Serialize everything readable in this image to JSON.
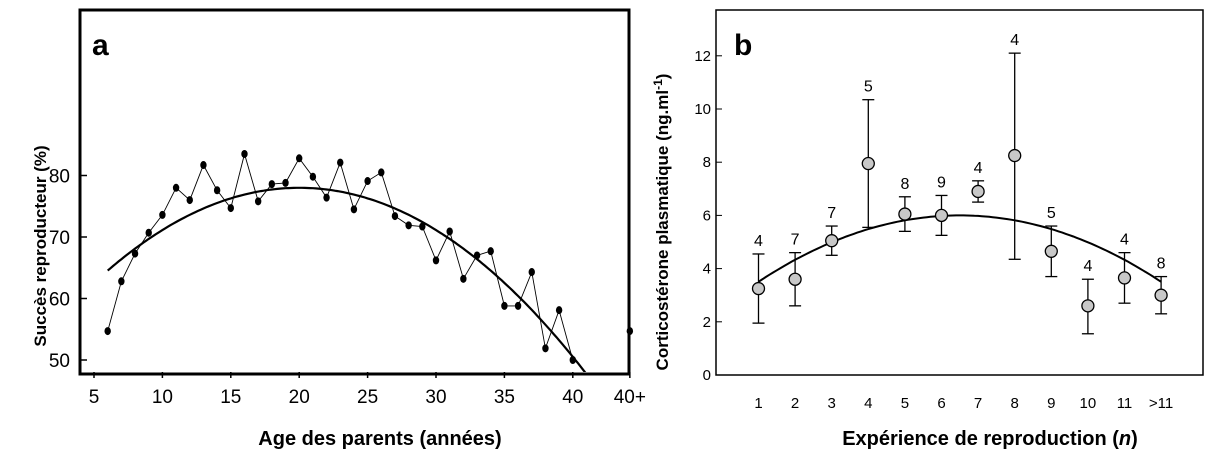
{
  "chart_data": [
    {
      "panel": "a",
      "type": "line",
      "ylabel": "Succès reproducteur (%)",
      "xlabel": "Age des parents (années)",
      "xticks": [
        "5",
        "10",
        "15",
        "20",
        "25",
        "30",
        "35",
        "40",
        "40+"
      ],
      "yticks": [
        "50",
        "60",
        "70",
        "80"
      ],
      "xlim": [
        4.5,
        44.8
      ],
      "ylim": [
        47.5,
        100
      ],
      "series": [
        {
          "values": [
            [
              6,
              54.7
            ],
            [
              7,
              62.8
            ],
            [
              8,
              67.3
            ],
            [
              9,
              70.7
            ],
            [
              10,
              73.6
            ],
            [
              11,
              78.0
            ],
            [
              12,
              76.0
            ],
            [
              13,
              81.7
            ],
            [
              14,
              77.6
            ],
            [
              15,
              74.7
            ],
            [
              16,
              83.5
            ],
            [
              17,
              75.8
            ],
            [
              18,
              78.6
            ],
            [
              19,
              78.8
            ],
            [
              20,
              82.8
            ],
            [
              21,
              79.8
            ],
            [
              22,
              76.4
            ],
            [
              23,
              82.1
            ],
            [
              24,
              74.5
            ],
            [
              25,
              79.1
            ],
            [
              26,
              80.5
            ],
            [
              27,
              73.4
            ],
            [
              28,
              71.9
            ],
            [
              29,
              71.7
            ],
            [
              30,
              66.2
            ],
            [
              31,
              70.9
            ],
            [
              32,
              63.2
            ],
            [
              33,
              67.0
            ],
            [
              34,
              67.7
            ],
            [
              35,
              58.8
            ],
            [
              36,
              58.8
            ],
            [
              37,
              64.3
            ],
            [
              38,
              51.9
            ],
            [
              39,
              58.1
            ],
            [
              40,
              50.0
            ]
          ]
        }
      ],
      "extra_point": {
        "x_label": "40+",
        "y": 54.7
      },
      "fit_curve": {
        "type": "quadratic",
        "vertex_x": 20,
        "vertex_y": 78,
        "a": -0.0687,
        "x_range": [
          6,
          42.8
        ]
      }
    },
    {
      "panel": "b",
      "type": "scatter",
      "ylabel": "Corticostérone plasmatique (ng.ml⁻¹)",
      "xlabel": "Expérience de reproduction (n)",
      "categories": [
        "1",
        "2",
        "3",
        "4",
        "5",
        "6",
        "7",
        "8",
        "9",
        "10",
        "11",
        ">11"
      ],
      "yticks": [
        "0",
        "2",
        "4",
        "6",
        "8",
        "10",
        "12"
      ],
      "ylim": [
        0,
        13.2
      ],
      "values": [
        3.25,
        3.6,
        5.05,
        7.95,
        6.05,
        6.0,
        6.9,
        8.25,
        4.65,
        2.6,
        3.65,
        3.0
      ],
      "error_bars": [
        [
          1.95,
          4.55
        ],
        [
          2.6,
          4.6
        ],
        [
          4.5,
          5.6
        ],
        [
          5.55,
          10.35
        ],
        [
          5.4,
          6.7
        ],
        [
          5.25,
          6.75
        ],
        [
          6.5,
          7.3
        ],
        [
          4.35,
          12.1
        ],
        [
          3.7,
          5.6
        ],
        [
          1.55,
          3.6
        ],
        [
          2.7,
          4.6
        ],
        [
          2.3,
          3.7
        ]
      ],
      "n_labels": [
        "4",
        "7",
        "7",
        "5",
        "8",
        "9",
        "4",
        "4",
        "5",
        "4",
        "4",
        "8"
      ],
      "fit_curve": {
        "type": "quadratic",
        "vertex_x": 6.5,
        "vertex_y": 6.0,
        "a": -0.0825,
        "x_range": [
          1,
          12
        ]
      }
    }
  ],
  "panel_a": {
    "letter": "a",
    "ylabel": "Succès reproducteur (%)",
    "xlabel": "Age des parents (années)"
  },
  "panel_b": {
    "letter": "b",
    "ylabel_main": "Corticostérone plasmatique (ng.ml",
    "ylabel_sup": "-1",
    "ylabel_end": ")",
    "xlabel_main": "Expérience de reproduction (",
    "xlabel_italic": "n",
    "xlabel_end": ")"
  },
  "colors": {
    "marker_a": "#000000",
    "marker_b_fill": "#c8c8c8",
    "marker_b_stroke": "#000000",
    "line": "#000000",
    "background": "#ffffff"
  }
}
